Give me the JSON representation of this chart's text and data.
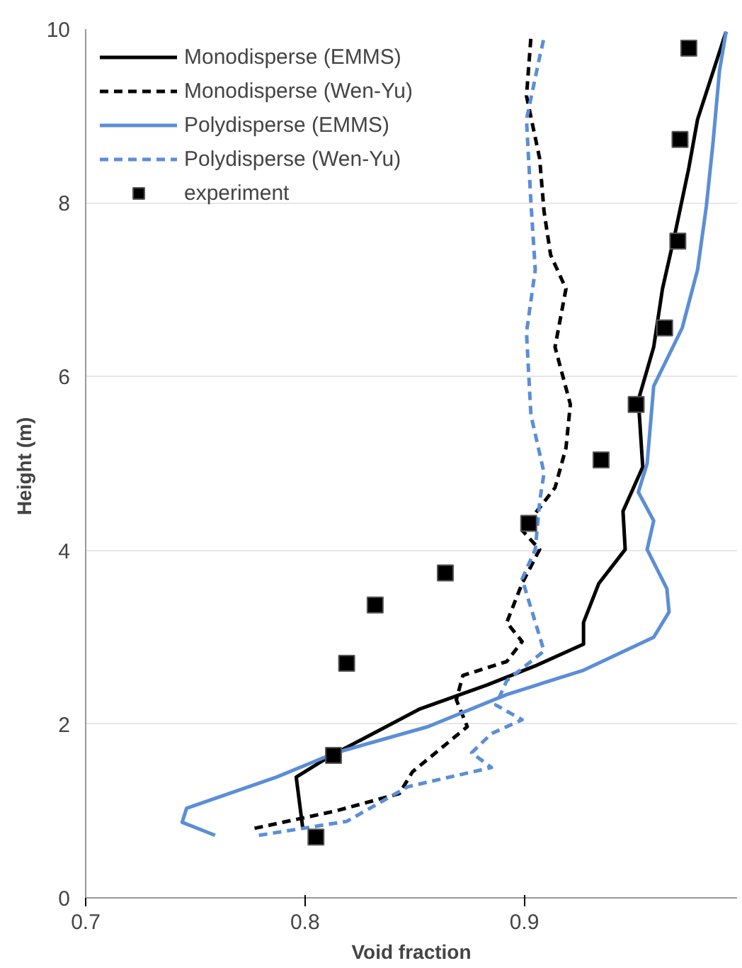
{
  "chart_data": {
    "type": "line",
    "xlabel": "Void fraction",
    "ylabel": "Height  (m)",
    "xlim": [
      0.7,
      0.997
    ],
    "ylim": [
      0,
      10
    ],
    "xticks": [
      0.7,
      0.8,
      0.9
    ],
    "yticks": [
      0,
      2,
      4,
      6,
      8,
      10
    ],
    "grid": "y",
    "legend": "top left",
    "series": [
      {
        "name": "Monodisperse (EMMS)",
        "color": "#000000",
        "line_style": "solid",
        "marker": "none",
        "x": [
          0.799,
          0.796,
          0.812,
          0.831,
          0.852,
          0.883,
          0.905,
          0.927,
          0.927,
          0.934,
          0.946,
          0.945,
          0.954,
          0.952,
          0.959,
          0.963,
          0.969,
          0.975,
          0.979,
          0.992
        ],
        "values": [
          0.8,
          1.39,
          1.64,
          1.89,
          2.17,
          2.45,
          2.67,
          2.92,
          3.17,
          3.62,
          4.01,
          4.45,
          4.96,
          5.73,
          6.34,
          7.01,
          7.68,
          8.4,
          8.96,
          9.97
        ]
      },
      {
        "name": "Monodisperse (Wen-Yu)",
        "color": "#000000",
        "line_style": "dashed",
        "marker": "none",
        "x": [
          0.777,
          0.814,
          0.843,
          0.849,
          0.861,
          0.874,
          0.869,
          0.872,
          0.892,
          0.899,
          0.892,
          0.899,
          0.907,
          0.899,
          0.914,
          0.919,
          0.921,
          0.914,
          0.919,
          0.912,
          0.909,
          0.907,
          0.901,
          0.903
        ],
        "values": [
          0.8,
          1.0,
          1.2,
          1.45,
          1.7,
          1.97,
          2.28,
          2.56,
          2.72,
          2.95,
          3.17,
          3.62,
          4.01,
          4.23,
          4.72,
          5.18,
          5.68,
          6.34,
          7.01,
          7.4,
          7.9,
          8.51,
          9.23,
          9.9
        ]
      },
      {
        "name": "Polydisperse (EMMS)",
        "color": "#5b8ed6",
        "line_style": "solid",
        "marker": "none",
        "x": [
          0.759,
          0.744,
          0.746,
          0.787,
          0.814,
          0.856,
          0.892,
          0.927,
          0.959,
          0.966,
          0.965,
          0.956,
          0.959,
          0.952,
          0.956,
          0.959,
          0.972,
          0.979,
          0.983,
          0.986,
          0.989,
          0.992
        ],
        "values": [
          0.72,
          0.87,
          1.03,
          1.39,
          1.67,
          1.97,
          2.34,
          2.62,
          3.0,
          3.29,
          3.56,
          4.01,
          4.34,
          4.67,
          5.0,
          5.89,
          6.56,
          7.23,
          7.96,
          8.68,
          9.52,
          9.97
        ]
      },
      {
        "name": "Polydisperse (Wen-Yu)",
        "color": "#5b8ed6",
        "line_style": "dashed",
        "marker": "none",
        "x": [
          0.779,
          0.819,
          0.847,
          0.885,
          0.876,
          0.885,
          0.899,
          0.887,
          0.892,
          0.909,
          0.903,
          0.899,
          0.905,
          0.907,
          0.909,
          0.903,
          0.901,
          0.905,
          0.903,
          0.901,
          0.907,
          0.909
        ],
        "values": [
          0.72,
          0.88,
          1.28,
          1.5,
          1.67,
          1.89,
          2.05,
          2.22,
          2.5,
          2.84,
          3.34,
          3.67,
          4.01,
          4.56,
          4.89,
          5.56,
          6.51,
          7.23,
          8.01,
          8.96,
          9.68,
          9.9
        ]
      },
      {
        "name": "experiment",
        "type": "scatter",
        "color": "#000000",
        "marker": "square",
        "x": [
          0.975,
          0.971,
          0.97,
          0.964,
          0.951,
          0.935,
          0.902,
          0.864,
          0.832,
          0.819,
          0.813,
          0.805
        ],
        "values": [
          9.78,
          8.73,
          7.56,
          6.56,
          5.68,
          5.04,
          4.31,
          3.74,
          3.37,
          2.7,
          1.64,
          0.7
        ]
      }
    ]
  }
}
